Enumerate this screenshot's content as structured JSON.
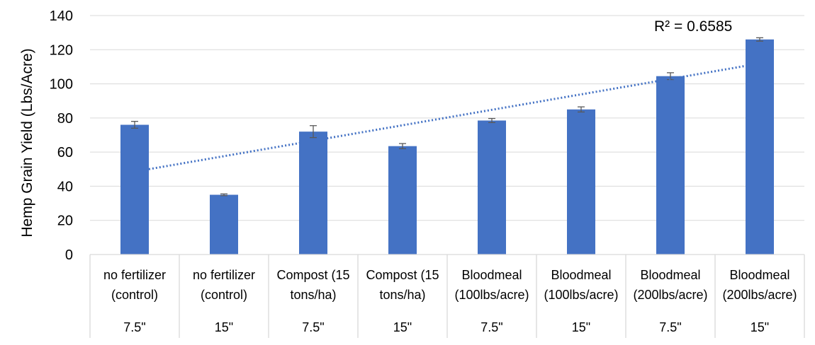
{
  "chart_data": {
    "type": "bar",
    "ylabel": "Hemp Grain Yield (Lbs/Acre)",
    "ylim": [
      0,
      140
    ],
    "yticks": [
      0,
      20,
      40,
      60,
      80,
      100,
      120,
      140
    ],
    "grid": true,
    "bar_color": "#4472C4",
    "trendline_color": "#4472C4",
    "trendline_type": "linear, dotted",
    "trendline_label": "R² = 0.6585",
    "categories": [
      {
        "treatment": [
          "no fertilizer",
          "(control)"
        ],
        "spacing": "7.5\""
      },
      {
        "treatment": [
          "no fertilizer",
          "(control)"
        ],
        "spacing": "15\""
      },
      {
        "treatment": [
          "Compost (15",
          "tons/ha)"
        ],
        "spacing": "7.5\""
      },
      {
        "treatment": [
          "Compost (15",
          "tons/ha)"
        ],
        "spacing": "15\""
      },
      {
        "treatment": [
          "Bloodmeal",
          "(100lbs/acre)"
        ],
        "spacing": "7.5\""
      },
      {
        "treatment": [
          "Bloodmeal",
          "(100lbs/acre)"
        ],
        "spacing": "15\""
      },
      {
        "treatment": [
          "Bloodmeal",
          "(200lbs/acre)"
        ],
        "spacing": "7.5\""
      },
      {
        "treatment": [
          "Bloodmeal",
          "(200lbs/acre)"
        ],
        "spacing": "15\""
      }
    ],
    "values": [
      76,
      35,
      72,
      63.5,
      78.5,
      85,
      104.5,
      126
    ],
    "errors": [
      2,
      0.5,
      3.5,
      1.5,
      1.2,
      1.5,
      2,
      1
    ],
    "trendline_endpoints": [
      50,
      110.5
    ]
  }
}
